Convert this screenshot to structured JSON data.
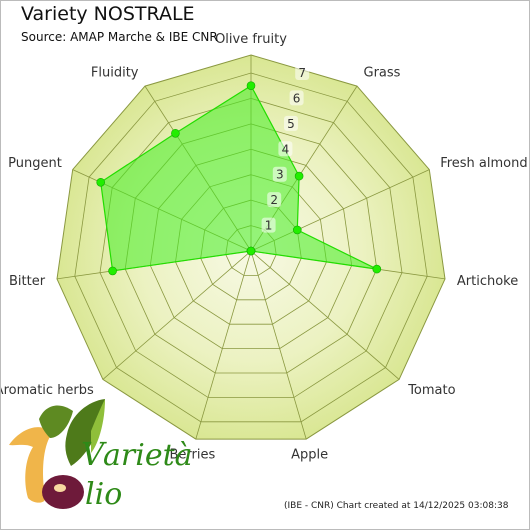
{
  "header": {
    "title": "Variety NOSTRALE",
    "subtitle": "Source: AMAP Marche & IBE CNR"
  },
  "footer": {
    "credit": "(IBE - CNR) Chart created at 14/12/2025 03:08:38"
  },
  "logo": {
    "name": "Varietà Olio",
    "word_top": "arietà",
    "word_bottom": "lio"
  },
  "colors": {
    "background_ring_outer": "#d8e690",
    "background_ring_inner": "#f7f9e4",
    "grid_line": "#8a9840",
    "series_fill": "#44ee22",
    "series_stroke": "#22dd00",
    "marker": "#22ee00"
  },
  "chart_data": {
    "type": "radar",
    "title": "Variety NOSTRALE",
    "subtitle": "Source: AMAP Marche & IBE CNR",
    "axes": [
      "Olive fruity",
      "Grass",
      "Fresh almond",
      "Artichoke",
      "Tomato",
      "Apple",
      "Berries",
      "Aromatic herbs",
      "Bitter",
      "Pungent",
      "Fluidity"
    ],
    "scale": {
      "min": 0,
      "max": 7,
      "ticks": [
        1,
        2,
        3,
        4,
        5,
        6,
        7
      ]
    },
    "series": [
      {
        "values": [
          6.5,
          3.5,
          2,
          5,
          0,
          0,
          0,
          0,
          5.5,
          6.5,
          5.5
        ]
      }
    ],
    "grid": true,
    "legend": false
  }
}
